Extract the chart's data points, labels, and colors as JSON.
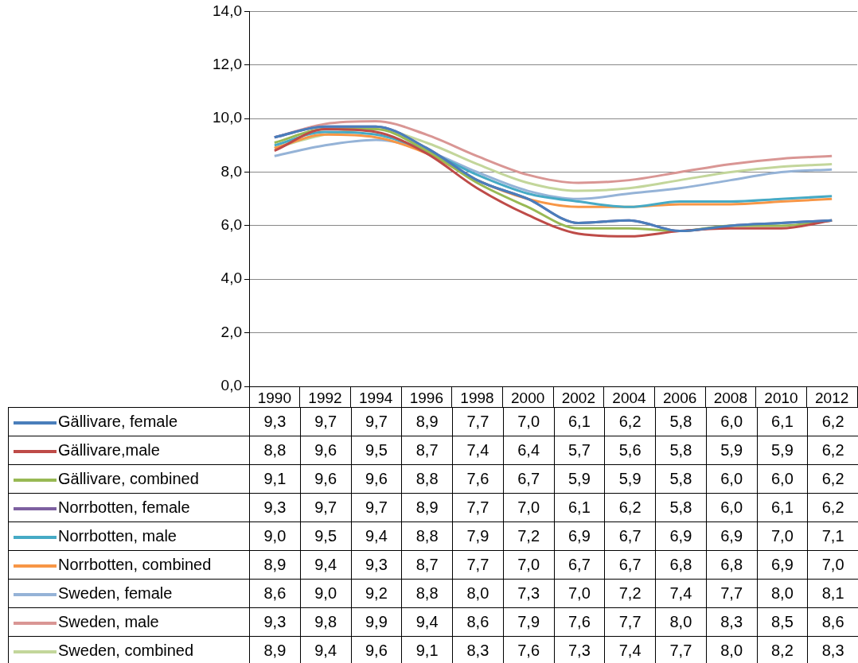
{
  "chart_data": {
    "type": "line",
    "categories": [
      "1990",
      "1992",
      "1994",
      "1996",
      "1998",
      "2000",
      "2002",
      "2004",
      "2006",
      "2008",
      "2010",
      "2012"
    ],
    "ylim": [
      0,
      14
    ],
    "yticks": [
      {
        "value": 0,
        "label": "0,0"
      },
      {
        "value": 2,
        "label": "2,0"
      },
      {
        "value": 4,
        "label": "4,0"
      },
      {
        "value": 6,
        "label": "6,0"
      },
      {
        "value": 8,
        "label": "8,0"
      },
      {
        "value": 10,
        "label": "10,0"
      },
      {
        "value": 12,
        "label": "12,0"
      },
      {
        "value": 14,
        "label": "14,0"
      }
    ],
    "grid": "y",
    "legend": "bottom",
    "marker": "none",
    "line_style": "solid",
    "series": [
      {
        "name": "Gällivare, female",
        "color": "#4a7ebb",
        "values": [
          9.3,
          9.7,
          9.7,
          8.9,
          7.7,
          7.0,
          6.1,
          6.2,
          5.8,
          6.0,
          6.1,
          6.2
        ],
        "value_labels": [
          "9,3",
          "9,7",
          "9,7",
          "8,9",
          "7,7",
          "7,0",
          "6,1",
          "6,2",
          "5,8",
          "6,0",
          "6,1",
          "6,2"
        ]
      },
      {
        "name": "Gällivare,male",
        "color": "#be4b48",
        "values": [
          8.8,
          9.6,
          9.5,
          8.7,
          7.4,
          6.4,
          5.7,
          5.6,
          5.8,
          5.9,
          5.9,
          6.2
        ],
        "value_labels": [
          "8,8",
          "9,6",
          "9,5",
          "8,7",
          "7,4",
          "6,4",
          "5,7",
          "5,6",
          "5,8",
          "5,9",
          "5,9",
          "6,2"
        ]
      },
      {
        "name": "Gällivare, combined",
        "color": "#98b954",
        "values": [
          9.1,
          9.6,
          9.6,
          8.8,
          7.6,
          6.7,
          5.9,
          5.9,
          5.8,
          6.0,
          6.0,
          6.2
        ],
        "value_labels": [
          "9,1",
          "9,6",
          "9,6",
          "8,8",
          "7,6",
          "6,7",
          "5,9",
          "5,9",
          "5,8",
          "6,0",
          "6,0",
          "6,2"
        ]
      },
      {
        "name": "Norrbotten, female",
        "color": "#7d60a0",
        "values": [
          9.3,
          9.7,
          9.7,
          8.9,
          7.7,
          7.0,
          6.1,
          6.2,
          5.8,
          6.0,
          6.1,
          6.2
        ],
        "value_labels": [
          "9,3",
          "9,7",
          "9,7",
          "8,9",
          "7,7",
          "7,0",
          "6,1",
          "6,2",
          "5,8",
          "6,0",
          "6,1",
          "6,2"
        ]
      },
      {
        "name": "Norrbotten, male",
        "color": "#46aac5",
        "values": [
          9.0,
          9.5,
          9.4,
          8.8,
          7.9,
          7.2,
          6.9,
          6.7,
          6.9,
          6.9,
          7.0,
          7.1
        ],
        "value_labels": [
          "9,0",
          "9,5",
          "9,4",
          "8,8",
          "7,9",
          "7,2",
          "6,9",
          "6,7",
          "6,9",
          "6,9",
          "7,0",
          "7,1"
        ]
      },
      {
        "name": "Norrbotten, combined",
        "color": "#f79646",
        "values": [
          8.9,
          9.4,
          9.3,
          8.7,
          7.7,
          7.0,
          6.7,
          6.7,
          6.8,
          6.8,
          6.9,
          7.0
        ],
        "value_labels": [
          "8,9",
          "9,4",
          "9,3",
          "8,7",
          "7,7",
          "7,0",
          "6,7",
          "6,7",
          "6,8",
          "6,8",
          "6,9",
          "7,0"
        ]
      },
      {
        "name": "Sweden, female",
        "color": "#95b3d7",
        "values": [
          8.6,
          9.0,
          9.2,
          8.8,
          8.0,
          7.3,
          7.0,
          7.2,
          7.4,
          7.7,
          8.0,
          8.1
        ],
        "value_labels": [
          "8,6",
          "9,0",
          "9,2",
          "8,8",
          "8,0",
          "7,3",
          "7,0",
          "7,2",
          "7,4",
          "7,7",
          "8,0",
          "8,1"
        ]
      },
      {
        "name": "Sweden, male",
        "color": "#d99694",
        "values": [
          9.3,
          9.8,
          9.9,
          9.4,
          8.6,
          7.9,
          7.6,
          7.7,
          8.0,
          8.3,
          8.5,
          8.6
        ],
        "value_labels": [
          "9,3",
          "9,8",
          "9,9",
          "9,4",
          "8,6",
          "7,9",
          "7,6",
          "7,7",
          "8,0",
          "8,3",
          "8,5",
          "8,6"
        ]
      },
      {
        "name": "Sweden, combined",
        "color": "#c3d69b",
        "values": [
          8.9,
          9.4,
          9.6,
          9.1,
          8.3,
          7.6,
          7.3,
          7.4,
          7.7,
          8.0,
          8.2,
          8.3
        ],
        "value_labels": [
          "8,9",
          "9,4",
          "9,6",
          "9,1",
          "8,3",
          "7,6",
          "7,3",
          "7,4",
          "7,7",
          "8,0",
          "8,2",
          "8,3"
        ]
      }
    ]
  }
}
